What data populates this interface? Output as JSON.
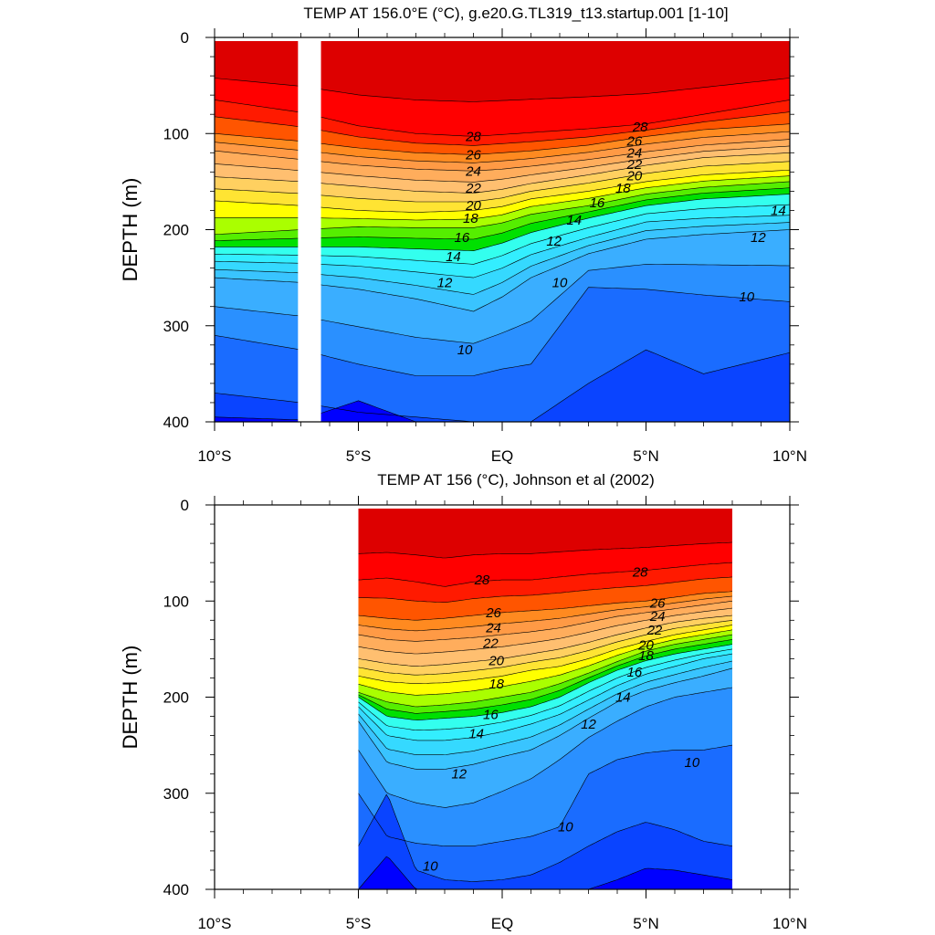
{
  "chart_data": [
    {
      "type": "heatmap",
      "title": "TEMP AT 156.0°E (°C), g.e20.G.TL319_t13.startup.001 [1-10]",
      "ylabel": "DEPTH (m)",
      "xlabel": "",
      "xlim": [
        -10,
        10
      ],
      "ylim": [
        400,
        0
      ],
      "x_ticks": [
        -10,
        -5,
        0,
        5,
        10
      ],
      "x_tick_labels": [
        "10°S",
        "5°S",
        "EQ",
        "5°N",
        "10°N"
      ],
      "y_ticks": [
        0,
        100,
        200,
        300,
        400
      ],
      "y_tick_labels": [
        "0",
        "100",
        "200",
        "300",
        "400"
      ],
      "data_xrange": [
        -10,
        10
      ],
      "missing_strip_lat": [
        -7.1,
        -6.3
      ],
      "levels": [
        8,
        9,
        10,
        11,
        12,
        13,
        14,
        15,
        16,
        17,
        18,
        19,
        20,
        21,
        22,
        23,
        24,
        25,
        26,
        27,
        28,
        29
      ],
      "fill_colors": [
        "#0000ff",
        "#0a44ff",
        "#1a6cff",
        "#2a90ff",
        "#3aaeff",
        "#39c4ff",
        "#35d9ff",
        "#33eeff",
        "#33ffee",
        "#00e000",
        "#55ee00",
        "#aaff00",
        "#ffff00",
        "#ffe433",
        "#ffd060",
        "#ffbf70",
        "#ffad5c",
        "#ff9a45",
        "#ff8a20",
        "#ff5500",
        "#ff1a00",
        "#ff0000",
        "#dd0000"
      ],
      "isotherm_depths": {
        "lat": [
          -10,
          -7,
          -5,
          -3,
          -1,
          0,
          1,
          3,
          5,
          7,
          10
        ],
        "t28": [
          65,
          78,
          92,
          100,
          103,
          101,
          99,
          95,
          90,
          80,
          65
        ],
        "t26": [
          100,
          108,
          115,
          120,
          122,
          120,
          118,
          112,
          103,
          96,
          90
        ],
        "t24": [
          118,
          127,
          133,
          137,
          139,
          137,
          134,
          127,
          119,
          112,
          106
        ],
        "t22": [
          145,
          150,
          155,
          160,
          162,
          158,
          152,
          143,
          133,
          125,
          120
        ],
        "t20": [
          170,
          175,
          180,
          182,
          180,
          176,
          168,
          160,
          150,
          143,
          138
        ],
        "t18": [
          205,
          200,
          197,
          198,
          198,
          193,
          184,
          175,
          163,
          156,
          150
        ],
        "t16": [
          218,
          218,
          218,
          220,
          222,
          214,
          203,
          188,
          175,
          168,
          163
        ],
        "t14": [
          233,
          235,
          238,
          244,
          250,
          240,
          226,
          208,
          192,
          188,
          185
        ],
        "t12": [
          250,
          255,
          262,
          272,
          285,
          270,
          250,
          225,
          210,
          205,
          200
        ],
        "t10": [
          310,
          325,
          340,
          352,
          352,
          345,
          340,
          260,
          262,
          268,
          275
        ],
        "t9": [
          370,
          380,
          390,
          395,
          400,
          400,
          400,
          360,
          325,
          350,
          328
        ],
        "t8": [
          395,
          398,
          378,
          400,
          400,
          400,
          400,
          400,
          400,
          400,
          400
        ]
      },
      "contour_labels": [
        {
          "text": "28",
          "lat": -1.0,
          "depth": 103
        },
        {
          "text": "26",
          "lat": -1.0,
          "depth": 122
        },
        {
          "text": "24",
          "lat": -1.0,
          "depth": 139
        },
        {
          "text": "22",
          "lat": -1.0,
          "depth": 157
        },
        {
          "text": "20",
          "lat": -1.0,
          "depth": 175
        },
        {
          "text": "18",
          "lat": -1.1,
          "depth": 188
        },
        {
          "text": "16",
          "lat": -1.4,
          "depth": 208
        },
        {
          "text": "14",
          "lat": -1.7,
          "depth": 228
        },
        {
          "text": "12",
          "lat": -2.0,
          "depth": 255
        },
        {
          "text": "10",
          "lat": -1.3,
          "depth": 325
        },
        {
          "text": "28",
          "lat": 4.8,
          "depth": 93
        },
        {
          "text": "26",
          "lat": 4.6,
          "depth": 108
        },
        {
          "text": "24",
          "lat": 4.6,
          "depth": 120
        },
        {
          "text": "22",
          "lat": 4.6,
          "depth": 132
        },
        {
          "text": "20",
          "lat": 4.6,
          "depth": 144
        },
        {
          "text": "18",
          "lat": 4.2,
          "depth": 157
        },
        {
          "text": "16",
          "lat": 3.3,
          "depth": 172
        },
        {
          "text": "14",
          "lat": 2.5,
          "depth": 190
        },
        {
          "text": "12",
          "lat": 1.8,
          "depth": 212
        },
        {
          "text": "10",
          "lat": 2.0,
          "depth": 255
        },
        {
          "text": "14",
          "lat": 9.6,
          "depth": 180
        },
        {
          "text": "12",
          "lat": 8.9,
          "depth": 208
        },
        {
          "text": "10",
          "lat": 8.5,
          "depth": 270
        }
      ]
    },
    {
      "type": "heatmap",
      "title": "TEMP AT 156 (°C), Johnson et al (2002)",
      "ylabel": "DEPTH (m)",
      "xlabel": "",
      "xlim": [
        -10,
        10
      ],
      "ylim": [
        400,
        0
      ],
      "x_ticks": [
        -10,
        -5,
        0,
        5,
        10
      ],
      "x_tick_labels": [
        "10°S",
        "5°S",
        "EQ",
        "5°N",
        "10°N"
      ],
      "y_ticks": [
        0,
        100,
        200,
        300,
        400
      ],
      "y_tick_labels": [
        "0",
        "100",
        "200",
        "300",
        "400"
      ],
      "data_xrange": [
        -5,
        8
      ],
      "levels": [
        8,
        9,
        10,
        11,
        12,
        13,
        14,
        15,
        16,
        17,
        18,
        19,
        20,
        21,
        22,
        23,
        24,
        25,
        26,
        27,
        28,
        29
      ],
      "fill_colors": [
        "#0000ff",
        "#0a44ff",
        "#1a6cff",
        "#2a90ff",
        "#3aaeff",
        "#39c4ff",
        "#35d9ff",
        "#33eeff",
        "#33ffee",
        "#00e000",
        "#55ee00",
        "#aaff00",
        "#ffff00",
        "#ffe433",
        "#ffd060",
        "#ffbf70",
        "#ffad5c",
        "#ff9a45",
        "#ff8a20",
        "#ff5500",
        "#ff1a00",
        "#ff0000",
        "#dd0000"
      ],
      "isotherm_depths": {
        "lat": [
          -5,
          -4,
          -3,
          -2,
          -1,
          0,
          1,
          2,
          3,
          4,
          5,
          6,
          7,
          8
        ],
        "t28": [
          78,
          76,
          80,
          85,
          80,
          78,
          78,
          75,
          72,
          70,
          68,
          65,
          62,
          60
        ],
        "t26": [
          115,
          118,
          120,
          118,
          115,
          112,
          110,
          108,
          105,
          102,
          100,
          96,
          92,
          90
        ],
        "t24": [
          135,
          140,
          142,
          140,
          138,
          135,
          132,
          128,
          122,
          116,
          112,
          108,
          104,
          100
        ],
        "t22": [
          160,
          165,
          168,
          166,
          163,
          160,
          155,
          150,
          143,
          135,
          128,
          122,
          118,
          115
        ],
        "t20": [
          178,
          184,
          186,
          185,
          182,
          178,
          172,
          168,
          160,
          150,
          142,
          135,
          130,
          125
        ],
        "t18": [
          195,
          205,
          210,
          208,
          205,
          200,
          195,
          186,
          175,
          163,
          152,
          145,
          140,
          135
        ],
        "t16": [
          200,
          220,
          224,
          222,
          220,
          216,
          210,
          200,
          185,
          172,
          162,
          155,
          150,
          145
        ],
        "t14": [
          210,
          240,
          245,
          245,
          242,
          236,
          228,
          218,
          203,
          188,
          176,
          168,
          160,
          155
        ],
        "t12": [
          225,
          268,
          275,
          275,
          270,
          262,
          255,
          240,
          222,
          205,
          193,
          185,
          178,
          170
        ],
        "t11": [
          255,
          300,
          310,
          315,
          310,
          298,
          285,
          265,
          242,
          225,
          210,
          200,
          195,
          190
        ],
        "t10": [
          300,
          345,
          352,
          355,
          355,
          350,
          345,
          335,
          280,
          265,
          258,
          255,
          255,
          250
        ],
        "t9": [
          355,
          300,
          380,
          390,
          392,
          390,
          385,
          372,
          355,
          340,
          330,
          338,
          350,
          355
        ],
        "t8": [
          400,
          365,
          400,
          400,
          400,
          400,
          400,
          400,
          400,
          390,
          378,
          380,
          385,
          390
        ]
      },
      "contour_labels": [
        {
          "text": "28",
          "lat": -0.7,
          "depth": 78
        },
        {
          "text": "28",
          "lat": 4.8,
          "depth": 70
        },
        {
          "text": "26",
          "lat": -0.3,
          "depth": 112
        },
        {
          "text": "24",
          "lat": -0.3,
          "depth": 128
        },
        {
          "text": "22",
          "lat": -0.4,
          "depth": 144
        },
        {
          "text": "20",
          "lat": -0.2,
          "depth": 162
        },
        {
          "text": "18",
          "lat": -0.2,
          "depth": 186
        },
        {
          "text": "16",
          "lat": -0.4,
          "depth": 218
        },
        {
          "text": "14",
          "lat": -0.9,
          "depth": 238
        },
        {
          "text": "12",
          "lat": -1.5,
          "depth": 280
        },
        {
          "text": "12",
          "lat": 3.0,
          "depth": 228
        },
        {
          "text": "10",
          "lat": 2.2,
          "depth": 335
        },
        {
          "text": "10",
          "lat": -2.5,
          "depth": 376
        },
        {
          "text": "26",
          "lat": 5.4,
          "depth": 102
        },
        {
          "text": "24",
          "lat": 5.4,
          "depth": 116
        },
        {
          "text": "22",
          "lat": 5.3,
          "depth": 130
        },
        {
          "text": "20",
          "lat": 5.0,
          "depth": 146
        },
        {
          "text": "18",
          "lat": 5.0,
          "depth": 157
        },
        {
          "text": "16",
          "lat": 4.6,
          "depth": 174
        },
        {
          "text": "14",
          "lat": 4.2,
          "depth": 200
        },
        {
          "text": "10",
          "lat": 6.6,
          "depth": 268
        }
      ]
    }
  ]
}
